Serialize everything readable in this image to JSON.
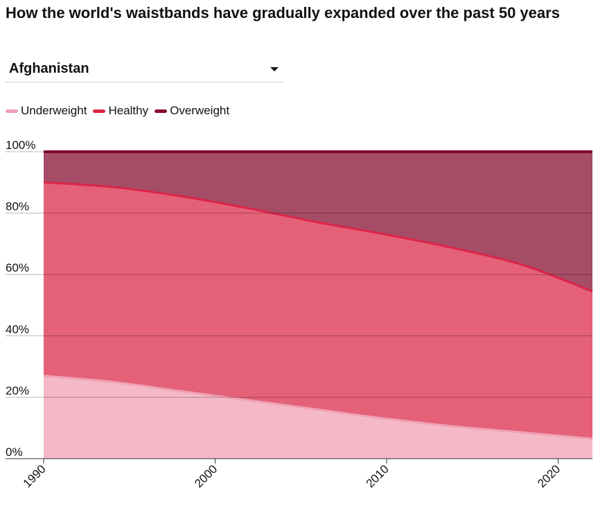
{
  "title": "How the world's waistbands have gradually expanded over the past 50 years",
  "dropdown": {
    "selected": "Afghanistan"
  },
  "legend": [
    {
      "label": "Underweight",
      "color": "#f0a0b5"
    },
    {
      "label": "Healthy",
      "color": "#dc2449"
    },
    {
      "label": "Overweight",
      "color": "#8b0a2e"
    }
  ],
  "chart_data": {
    "type": "area",
    "stacked": true,
    "title": "How the world's waistbands have gradually expanded over the past 50 years",
    "x": [
      1990,
      1994,
      1998,
      2002,
      2006,
      2010,
      2014,
      2018,
      2022
    ],
    "series": [
      {
        "name": "Underweight",
        "values": [
          27,
          25,
          22,
          19,
          16,
          13,
          10.5,
          8.5,
          6.5
        ]
      },
      {
        "name": "Healthy",
        "values": [
          63,
          63.5,
          63.5,
          62.5,
          61,
          60,
          58,
          54.5,
          48
        ]
      },
      {
        "name": "Overweight",
        "values": [
          10,
          11.5,
          14.5,
          18.5,
          23,
          27,
          31.5,
          37,
          45.5
        ]
      }
    ],
    "xticks": [
      1990,
      2000,
      2010,
      2020
    ],
    "xtick_labels": [
      "1990",
      "2000",
      "2010",
      "2020"
    ],
    "yticks": [
      0,
      20,
      40,
      60,
      80,
      100
    ],
    "ytick_labels": [
      "0%",
      "20%",
      "40%",
      "60%",
      "80%",
      "100%"
    ],
    "xlim": [
      1990,
      2022
    ],
    "ylim": [
      0,
      100
    ],
    "grid": true,
    "legend_position": "top-left",
    "xlabel": "",
    "ylabel": "",
    "colors": {
      "underweight_fill": "#f4b8c6",
      "underweight_line": "#f0a0b5",
      "healthy_fill": "#e46177",
      "healthy_line": "#dc2449",
      "overweight_fill": "#a54c66",
      "overweight_line": "#8b0a2e"
    }
  }
}
